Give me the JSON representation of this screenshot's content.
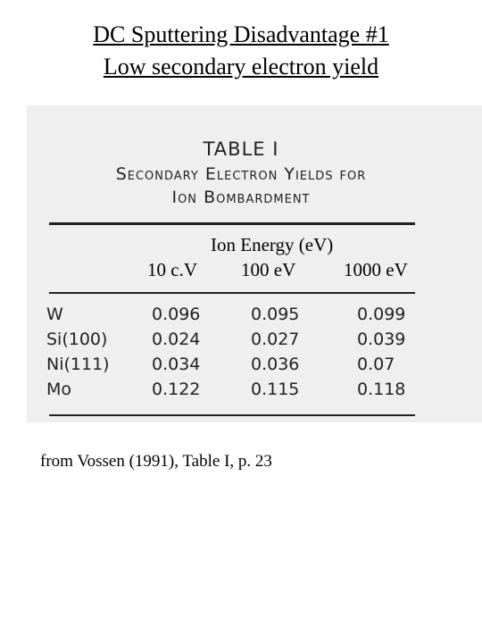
{
  "header": {
    "lines": [
      "DC Sputtering Disadvantage #1",
      "Low secondary electron yield"
    ]
  },
  "table": {
    "title": "TABLE I",
    "subtitle": [
      "Secondary Electron Yields for",
      "Ion Bombardment"
    ],
    "group_header": "Ion Energy (eV)",
    "columns": [
      "10 c.V",
      "100 eV",
      "1000 eV"
    ],
    "rows": [
      [
        "W",
        "0.096",
        "0.095",
        "0.099"
      ],
      [
        "Si(100)",
        "0.024",
        "0.027",
        "0.039"
      ],
      [
        "Ni(111)",
        "0.034",
        "0.036",
        "0.07"
      ],
      [
        "Mo",
        "0.122",
        "0.115",
        "0.118"
      ]
    ]
  },
  "caption": "from Vossen (1991), Table I, p. 23"
}
